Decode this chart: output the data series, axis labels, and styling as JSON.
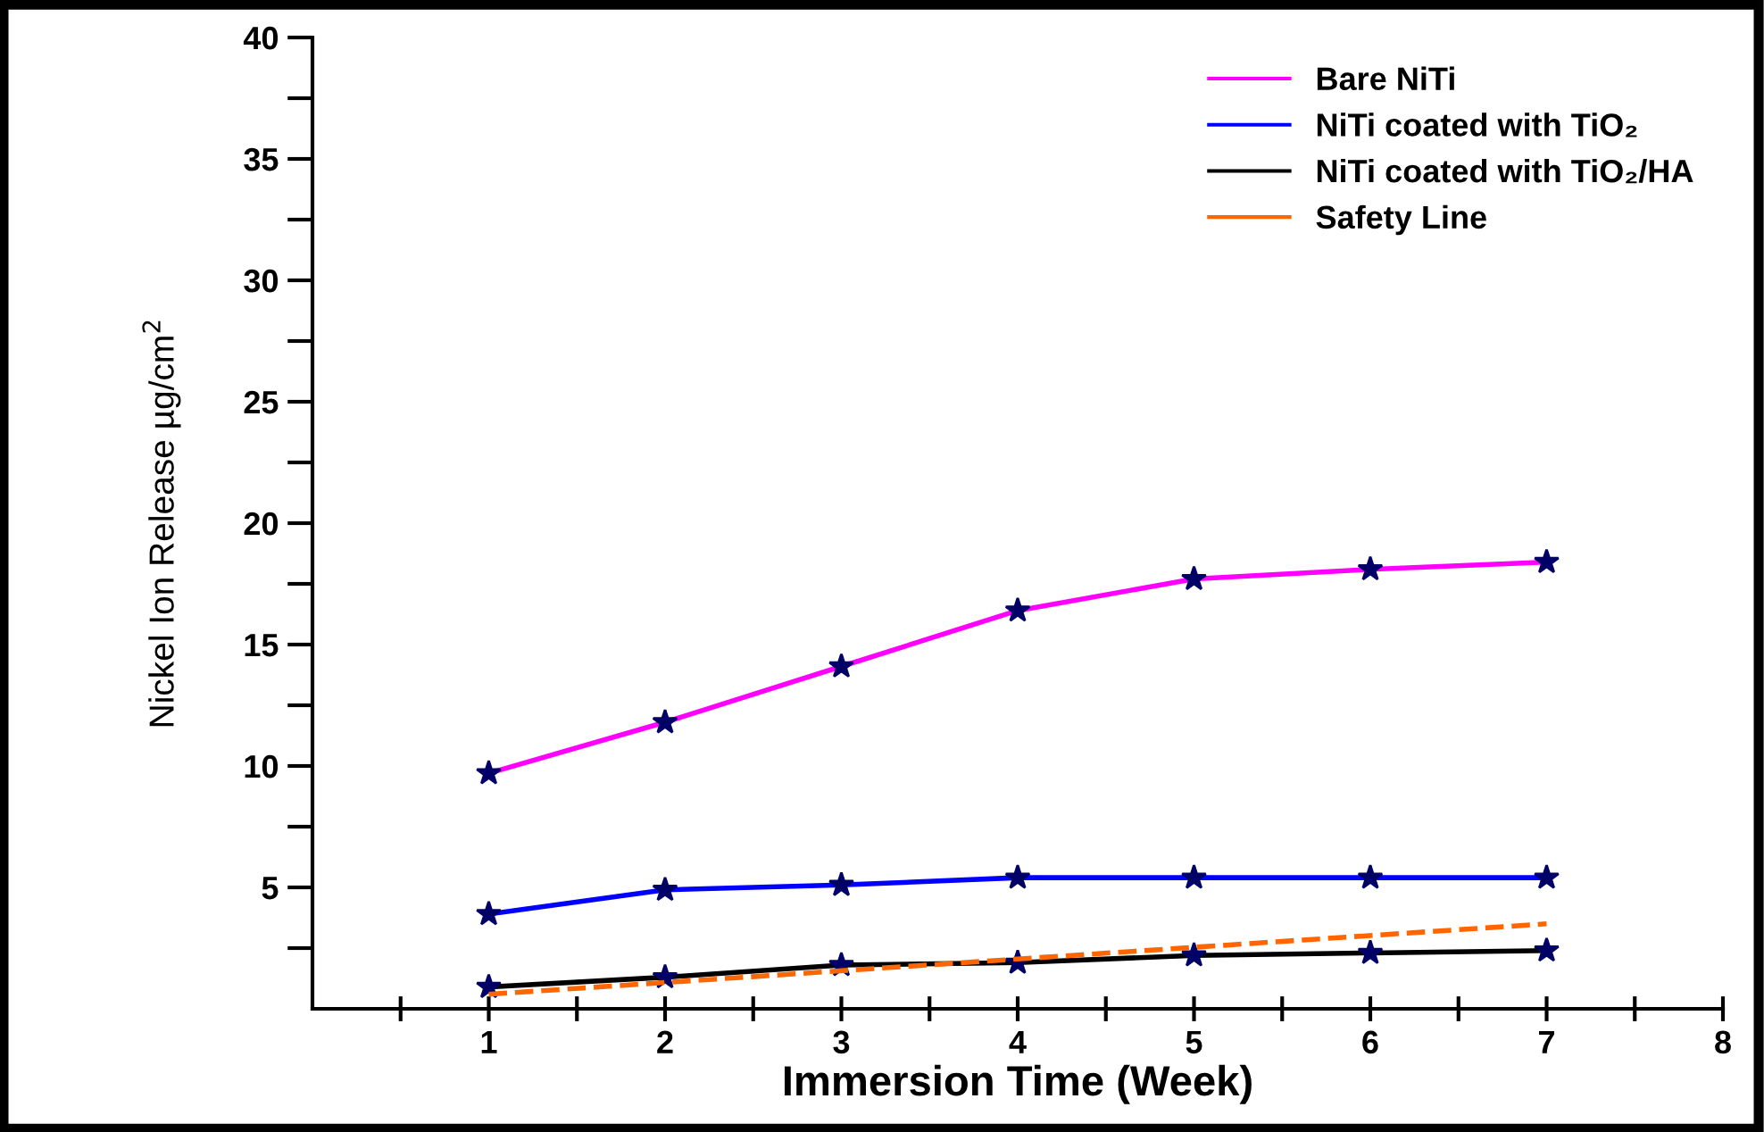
{
  "chart_data": {
    "type": "line",
    "xlabel": "Immersion Time (Week)",
    "ylabel": "Nickel Ion Release µg/cm$^{2}$",
    "x": [
      1,
      2,
      3,
      4,
      5,
      6,
      7
    ],
    "series": [
      {
        "name": "Bare NiTi",
        "color": "#ff00ff",
        "values": [
          9.7,
          11.8,
          14.1,
          16.4,
          17.7,
          18.1,
          18.4
        ],
        "marker": "star"
      },
      {
        "name": "NiTi coated with TiO₂",
        "color": "#0000ff",
        "values": [
          3.9,
          4.9,
          5.1,
          5.4,
          5.4,
          5.4,
          5.4
        ],
        "marker": "star"
      },
      {
        "name": "NiTi coated with TiO₂/HA",
        "color": "#000000",
        "values": [
          0.9,
          1.3,
          1.8,
          1.9,
          2.2,
          2.3,
          2.4
        ],
        "marker": "star"
      },
      {
        "name": "Safety Line",
        "color": "#ff6600",
        "x": [
          1,
          7
        ],
        "values": [
          0.6,
          3.5
        ],
        "line_style": "dashed"
      }
    ],
    "xlim": [
      0,
      8
    ],
    "ylim": [
      0,
      40
    ],
    "xticks": [
      {
        "value": 0.5,
        "label": null
      },
      1,
      {
        "value": 1.5,
        "label": null
      },
      2,
      {
        "value": 2.5,
        "label": null
      },
      3,
      {
        "value": 3.5,
        "label": null
      },
      4,
      {
        "value": 4.5,
        "label": null
      },
      5,
      {
        "value": 5.5,
        "label": null
      },
      6,
      {
        "value": 6.5,
        "label": null
      },
      7,
      {
        "value": 7.5,
        "label": null
      },
      8
    ],
    "yticks": [
      {
        "value": 2.5,
        "label": null
      },
      5,
      {
        "value": 7.5,
        "label": null
      },
      10,
      {
        "value": 12.5,
        "label": null
      },
      15,
      {
        "value": 17.5,
        "label": null
      },
      20,
      {
        "value": 22.5,
        "label": null
      },
      25,
      {
        "value": 27.5,
        "label": null
      },
      30,
      {
        "value": 32.5,
        "label": null
      },
      35,
      {
        "value": 37.5,
        "label": null
      },
      40
    ],
    "legend": "top right",
    "grid": false
  }
}
